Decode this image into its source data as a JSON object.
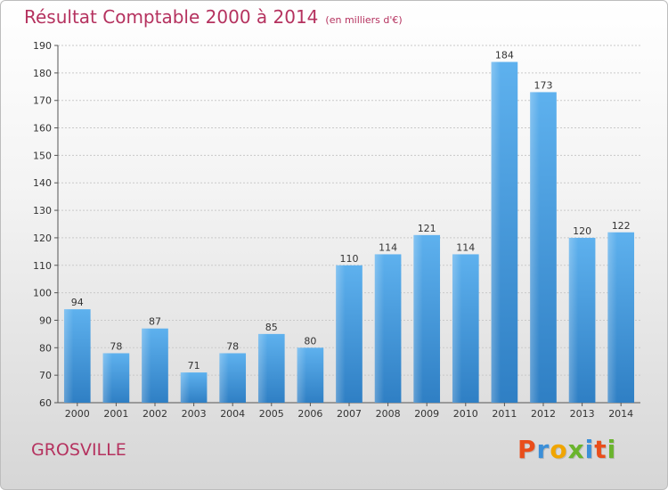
{
  "header": {
    "title": "Résultat Comptable 2000 à 2014",
    "subtitle": "(en milliers d'€)"
  },
  "footer": {
    "location": "GROSVILLE",
    "logo_letters": [
      "P",
      "r",
      "o",
      "x",
      "i",
      "t",
      "i"
    ],
    "logo_colors": [
      "#e94e1b",
      "#3b8fd8",
      "#f0a500",
      "#6ab42d",
      "#3b8fd8",
      "#e94e1b",
      "#6ab42d"
    ]
  },
  "chart_data": {
    "type": "bar",
    "categories": [
      "2000",
      "2001",
      "2002",
      "2003",
      "2004",
      "2005",
      "2006",
      "2007",
      "2008",
      "2009",
      "2010",
      "2011",
      "2012",
      "2013",
      "2014"
    ],
    "values": [
      94,
      78,
      87,
      71,
      78,
      85,
      80,
      110,
      114,
      121,
      114,
      184,
      173,
      120,
      122
    ],
    "ylim": [
      60,
      190
    ],
    "yticks": [
      60,
      70,
      80,
      90,
      100,
      110,
      120,
      130,
      140,
      150,
      160,
      170,
      180,
      190
    ],
    "grid": true,
    "bar_color": "#4a9fe0"
  }
}
